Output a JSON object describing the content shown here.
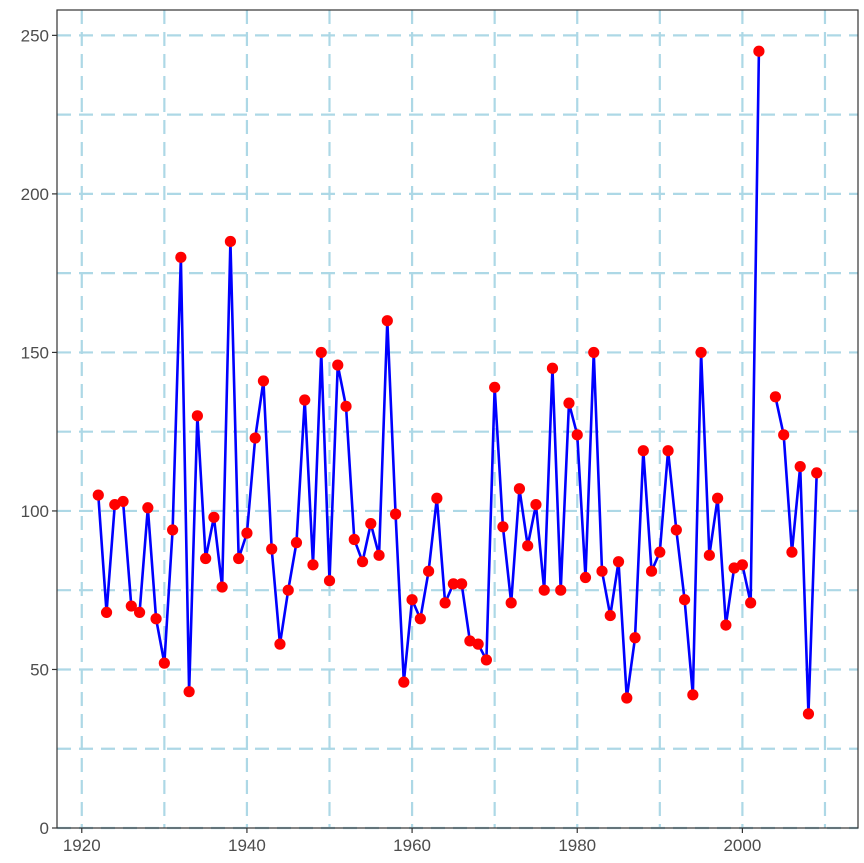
{
  "chart_data": {
    "type": "line",
    "title": "",
    "xlabel": "",
    "ylabel": "",
    "xlim": [
      1917,
      2014
    ],
    "ylim": [
      0,
      258
    ],
    "x_ticks": [
      1920,
      1940,
      1960,
      1980,
      2000
    ],
    "y_ticks": [
      0,
      50,
      100,
      150,
      200,
      250
    ],
    "x_tick_labels": [
      "1920",
      "1940",
      "1960",
      "1980",
      "2000"
    ],
    "y_tick_labels": [
      "0",
      "50",
      "100",
      "150",
      "200",
      "250"
    ],
    "x_minor_gridlines": [
      1930,
      1950,
      1970,
      1990,
      2010
    ],
    "y_minor_gridlines": [
      25,
      75,
      125,
      175,
      225
    ],
    "grid": true,
    "grid_style": "dashed",
    "line_color": "#0000ff",
    "point_color": "#ff0000",
    "grid_color": "#add8e6",
    "series": [
      {
        "points": [
          [
            1922,
            105
          ],
          [
            1923,
            68
          ],
          [
            1924,
            102
          ],
          [
            1925,
            103
          ],
          [
            1926,
            70
          ],
          [
            1927,
            68
          ],
          [
            1928,
            101
          ],
          [
            1929,
            66
          ],
          [
            1930,
            52
          ],
          [
            1931,
            94
          ],
          [
            1932,
            180
          ],
          [
            1933,
            43
          ],
          [
            1934,
            130
          ],
          [
            1935,
            85
          ],
          [
            1936,
            98
          ],
          [
            1937,
            76
          ],
          [
            1938,
            185
          ],
          [
            1939,
            85
          ],
          [
            1940,
            93
          ],
          [
            1941,
            123
          ],
          [
            1942,
            141
          ],
          [
            1943,
            88
          ],
          [
            1944,
            58
          ],
          [
            1945,
            75
          ],
          [
            1946,
            90
          ],
          [
            1947,
            135
          ],
          [
            1948,
            83
          ],
          [
            1949,
            150
          ],
          [
            1950,
            78
          ],
          [
            1951,
            146
          ],
          [
            1952,
            133
          ],
          [
            1953,
            91
          ],
          [
            1954,
            84
          ],
          [
            1955,
            96
          ],
          [
            1956,
            86
          ],
          [
            1957,
            160
          ],
          [
            1958,
            99
          ],
          [
            1959,
            46
          ],
          [
            1960,
            72
          ],
          [
            1961,
            66
          ],
          [
            1962,
            81
          ],
          [
            1963,
            104
          ],
          [
            1964,
            71
          ],
          [
            1965,
            77
          ],
          [
            1966,
            77
          ],
          [
            1967,
            59
          ],
          [
            1968,
            58
          ],
          [
            1969,
            53
          ],
          [
            1970,
            139
          ],
          [
            1971,
            95
          ],
          [
            1972,
            71
          ],
          [
            1973,
            107
          ],
          [
            1974,
            89
          ],
          [
            1975,
            102
          ],
          [
            1976,
            75
          ],
          [
            1977,
            145
          ],
          [
            1978,
            75
          ],
          [
            1979,
            134
          ],
          [
            1980,
            124
          ],
          [
            1981,
            79
          ],
          [
            1982,
            150
          ],
          [
            1983,
            81
          ],
          [
            1984,
            67
          ],
          [
            1985,
            84
          ],
          [
            1986,
            41
          ],
          [
            1987,
            60
          ],
          [
            1988,
            119
          ],
          [
            1989,
            81
          ],
          [
            1990,
            87
          ],
          [
            1991,
            119
          ],
          [
            1992,
            94
          ],
          [
            1993,
            72
          ],
          [
            1994,
            42
          ],
          [
            1995,
            150
          ],
          [
            1996,
            86
          ],
          [
            1997,
            104
          ],
          [
            1998,
            64
          ],
          [
            1999,
            82
          ],
          [
            2000,
            83
          ],
          [
            2001,
            71
          ],
          [
            2002,
            245
          ],
          null,
          [
            2004,
            136
          ],
          [
            2005,
            124
          ],
          [
            2006,
            87
          ],
          [
            2007,
            114
          ],
          [
            2008,
            36
          ],
          [
            2009,
            112
          ]
        ]
      }
    ]
  }
}
